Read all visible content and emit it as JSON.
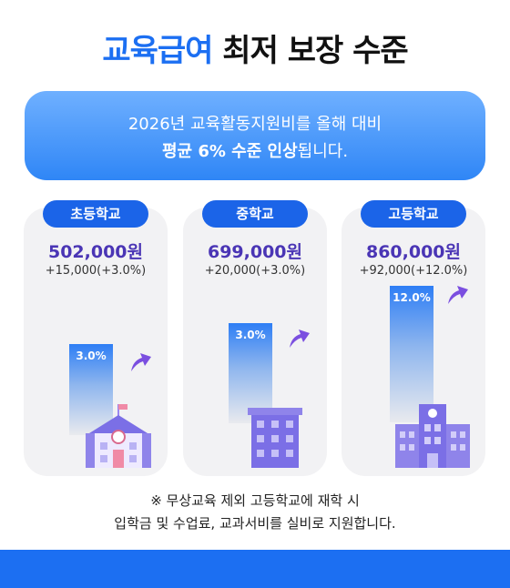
{
  "title": {
    "part1": "교육급여",
    "part2": "최저 보장 수준"
  },
  "banner": {
    "line1": "2026년 교육활동지원비를 올해 대비",
    "line2_bold": "평균 6% 수준 인상",
    "line2_rest": "됩니다."
  },
  "schools": [
    {
      "label": "초등학교",
      "amount": "502,000원",
      "delta": "+15,000(+3.0%)",
      "percent": "3.0%"
    },
    {
      "label": "중학교",
      "amount": "699,000원",
      "delta": "+20,000(+3.0%)",
      "percent": "3.0%"
    },
    {
      "label": "고등학교",
      "amount": "860,000원",
      "delta": "+92,000(+12.0%)",
      "percent": "12.0%"
    }
  ],
  "note": {
    "line1": "※ 무상교육 제외 고등학교에 재학 시",
    "line2": "입학금 및 수업료, 교과서비를 실비로 지원합니다."
  },
  "colors": {
    "accent": "#1c6ff2",
    "amount": "#4a35b5",
    "arrow": "#7b4fe0"
  }
}
